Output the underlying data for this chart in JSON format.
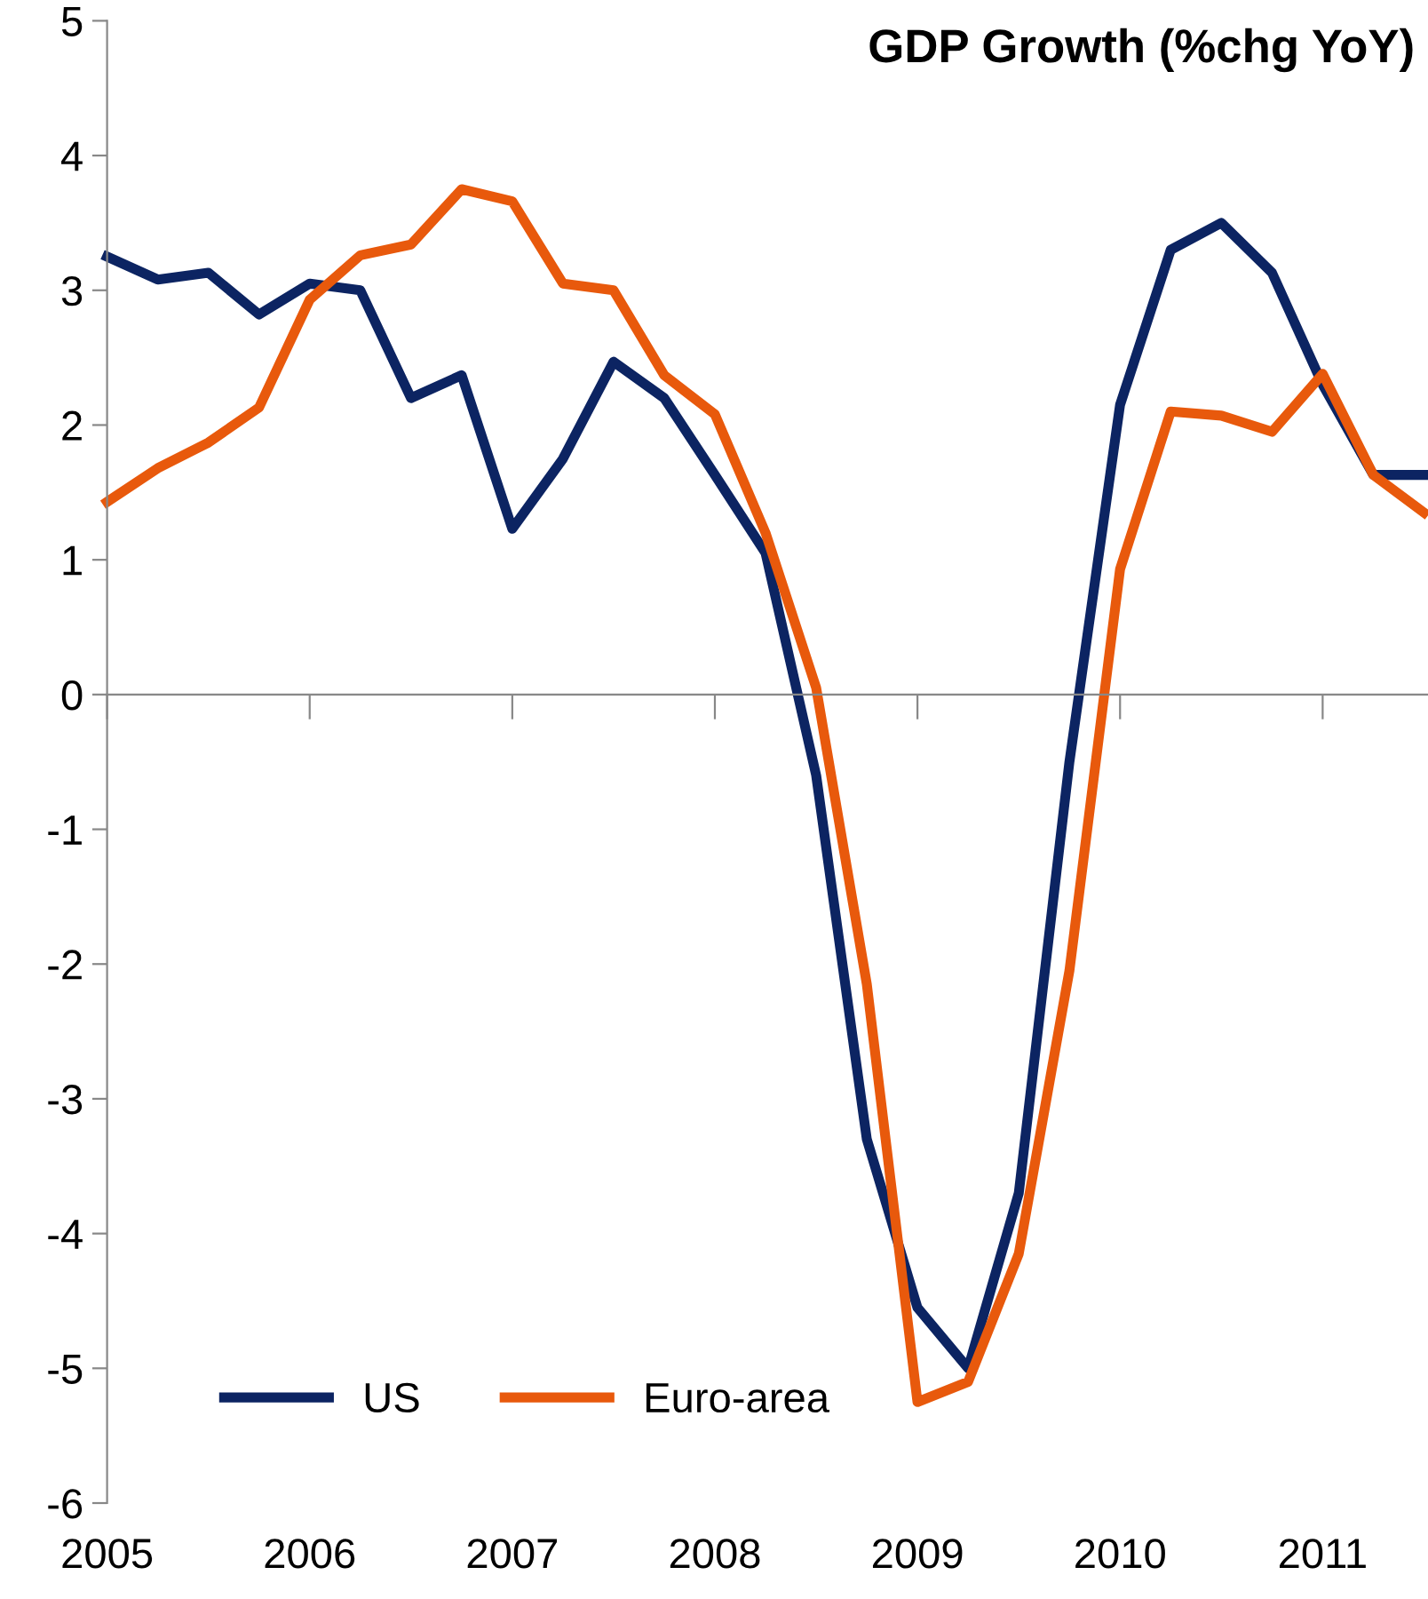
{
  "chart_data": {
    "type": "line",
    "title": "GDP Growth (%chg YoY)",
    "x": [
      2005,
      2005.25,
      2005.5,
      2005.75,
      2006,
      2006.25,
      2006.5,
      2006.75,
      2007,
      2007.25,
      2007.5,
      2007.75,
      2008,
      2008.25,
      2008.5,
      2008.75,
      2009,
      2009.25,
      2009.5,
      2009.75,
      2010,
      2010.25,
      2010.5,
      2010.75,
      2011,
      2011.25,
      2011.5
    ],
    "series": [
      {
        "name": "US",
        "color": "#0c2462",
        "values": [
          3.25,
          3.08,
          3.13,
          2.82,
          3.05,
          3.0,
          2.2,
          2.37,
          1.23,
          1.75,
          2.47,
          2.2,
          1.63,
          1.05,
          -0.6,
          -3.3,
          -4.55,
          -5.0,
          -3.7,
          -0.5,
          2.15,
          3.3,
          3.5,
          3.13,
          2.3,
          1.63,
          1.63
        ]
      },
      {
        "name": "Euro-area",
        "color": "#e8590c",
        "values": [
          1.43,
          1.68,
          1.87,
          2.13,
          2.93,
          3.26,
          3.34,
          3.75,
          3.66,
          3.05,
          3.0,
          2.37,
          2.08,
          1.2,
          0.05,
          -2.15,
          -5.25,
          -5.1,
          -4.15,
          -2.05,
          0.93,
          2.1,
          2.07,
          1.95,
          2.38,
          1.63,
          1.35
        ]
      }
    ],
    "xlim": [
      2005,
      2011.52
    ],
    "xticks": [
      2005,
      2006,
      2007,
      2008,
      2009,
      2010,
      2011
    ],
    "ylim": [
      -6,
      5
    ],
    "yticks": [
      -6,
      -5,
      -4,
      -3,
      -2,
      -1,
      0,
      1,
      2,
      3,
      4,
      5
    ],
    "legend": "bottom left",
    "marker": "none",
    "line_style": "solid"
  }
}
